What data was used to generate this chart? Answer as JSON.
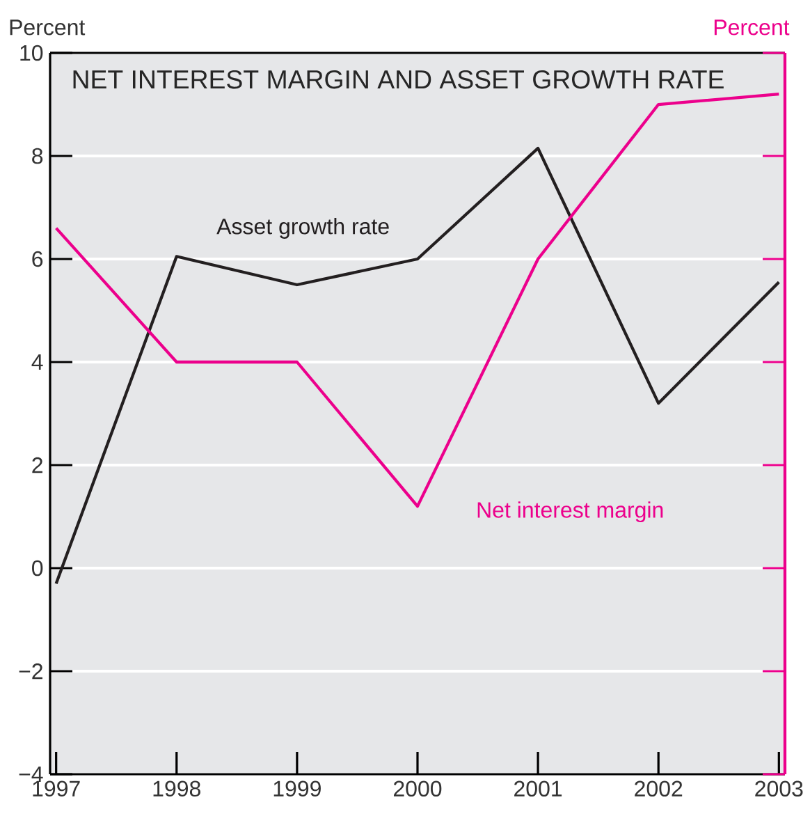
{
  "chart_data": {
    "type": "line",
    "title": "NET INTEREST MARGIN AND ASSET GROWTH RATE",
    "ylabel": "Percent",
    "y2label": "Percent",
    "x": [
      1997,
      1998,
      1999,
      2000,
      2001,
      2002,
      2003
    ],
    "series": [
      {
        "name": "Asset growth rate",
        "color": "#231f20",
        "values": [
          -0.3,
          6.05,
          5.5,
          6.0,
          8.15,
          3.2,
          5.55
        ]
      },
      {
        "name": "Net interest margin",
        "color": "#ec008c",
        "values": [
          6.6,
          4.0,
          4.0,
          1.2,
          6.0,
          9.0,
          9.2
        ]
      }
    ],
    "xlim": [
      1996.95,
      2003.05
    ],
    "xticks": [
      1997,
      1998,
      1999,
      2000,
      2001,
      2002,
      2003
    ],
    "ylim": [
      -4,
      10
    ],
    "yticks": [
      {
        "value": -4,
        "label": "−4"
      },
      {
        "value": -2,
        "label": "−2"
      },
      0,
      2,
      4,
      6,
      8,
      10
    ],
    "grid": "y",
    "marker": "none",
    "line_style": "solid"
  }
}
